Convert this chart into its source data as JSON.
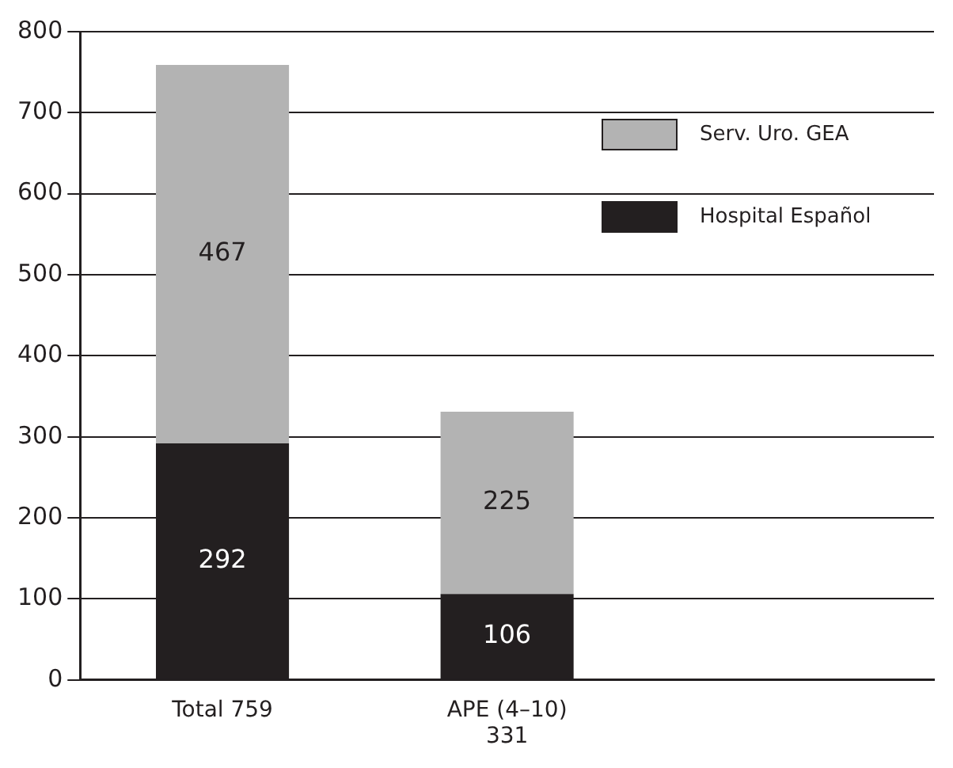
{
  "chart_data": {
    "type": "bar",
    "stacked": true,
    "categories": [
      "Total 759",
      "APE (4–10)\n331",
      null
    ],
    "series": [
      {
        "name": "Hospital Español",
        "color": "#231f20",
        "values": [
          292,
          106,
          null
        ]
      },
      {
        "name": "Serv. Uro. GEA",
        "color": "#b3b3b3",
        "values": [
          467,
          225,
          null
        ]
      }
    ],
    "ylim": [
      0,
      800
    ],
    "yticks": [
      0,
      100,
      200,
      300,
      400,
      500,
      600,
      700,
      800
    ],
    "grid": "y",
    "legend": "top right",
    "data_labels": true
  }
}
